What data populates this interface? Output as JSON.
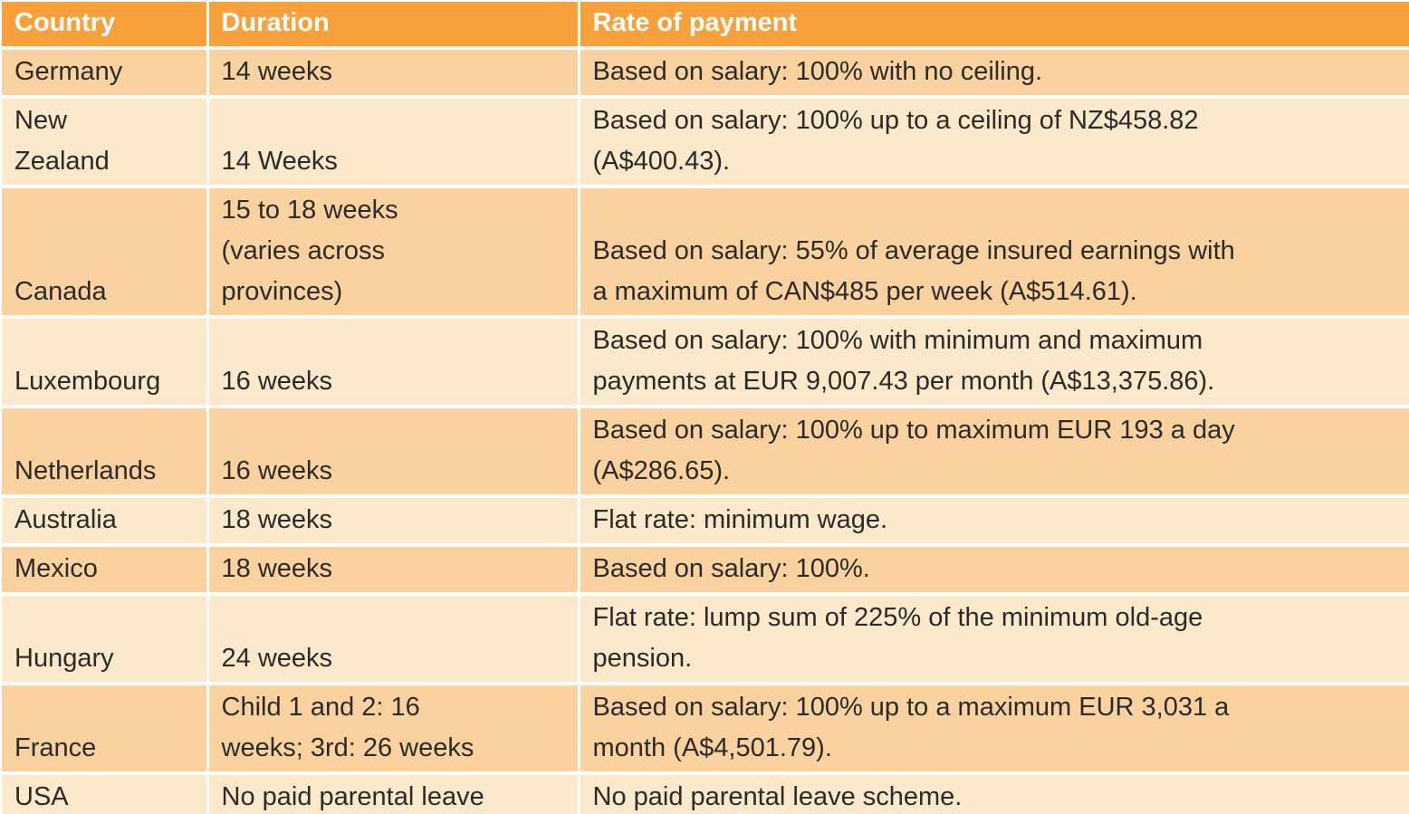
{
  "table": {
    "columns": [
      "Country",
      "Duration",
      "Rate of payment"
    ],
    "rows": [
      {
        "country": "Germany",
        "duration": "14 weeks",
        "rate": "Based on salary: 100% with no ceiling."
      },
      {
        "country": "New\nZealand",
        "duration": "14 Weeks",
        "rate": "Based on salary: 100% up to a ceiling of NZ$458.82\n(A$400.43)."
      },
      {
        "country": "Canada",
        "duration": "15 to 18 weeks\n(varies across\nprovinces)",
        "rate": "Based on salary: 55% of average insured earnings with\na maximum of CAN$485 per week (A$514.61)."
      },
      {
        "country": "Luxembourg",
        "duration": "16 weeks",
        "rate": "Based on salary: 100% with minimum and maximum\npayments at EUR 9,007.43 per month (A$13,375.86)."
      },
      {
        "country": "Netherlands",
        "duration": "16 weeks",
        "rate": "Based on salary: 100% up to maximum EUR 193 a day\n(A$286.65)."
      },
      {
        "country": "Australia",
        "duration": "18 weeks",
        "rate": "Flat rate: minimum wage."
      },
      {
        "country": "Mexico",
        "duration": "18 weeks",
        "rate": "Based on salary: 100%."
      },
      {
        "country": "Hungary",
        "duration": "24 weeks",
        "rate": "Flat rate: lump sum of 225% of the minimum old-age\npension."
      },
      {
        "country": "France",
        "duration": "Child 1 and 2: 16\nweeks; 3rd: 26 weeks",
        "rate": "Based on salary: 100% up to a maximum EUR 3,031 a\nmonth (A$4,501.79)."
      },
      {
        "country": "USA",
        "duration": "No paid parental leave",
        "rate": "No paid parental leave scheme."
      }
    ]
  },
  "colors": {
    "header_bg": "#F7A03C",
    "row_dark": "#FAD2A0",
    "row_light": "#FCE8CB",
    "grid": "#FFFFFF",
    "text": "#2B2B28",
    "header_text": "#FFFFFF"
  }
}
